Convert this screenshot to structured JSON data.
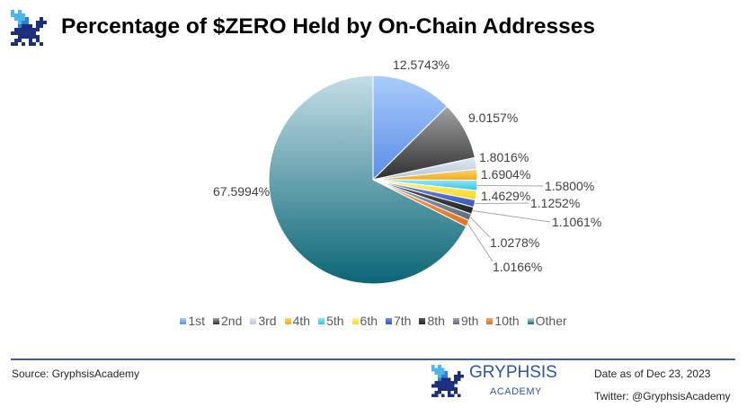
{
  "chart_data": {
    "type": "pie",
    "title": "Percentage of $ZERO Held by On-Chain Addresses",
    "categories": [
      "1st",
      "2nd",
      "3rd",
      "4th",
      "5th",
      "6th",
      "7th",
      "8th",
      "9th",
      "10th",
      "Other"
    ],
    "values": [
      12.5743,
      9.0157,
      1.8016,
      1.6904,
      1.58,
      1.4629,
      1.1252,
      1.1061,
      1.0278,
      1.0166,
      67.5994
    ],
    "data_labels": [
      "12.5743%",
      "9.0157%",
      "1.8016%",
      "1.6904%",
      "1.5800%",
      "1.4629%",
      "1.1252%",
      "1.1061%",
      "1.0278%",
      "1.0166%",
      "67.5994%"
    ],
    "colors": [
      [
        "#a9ccfb",
        "#5a8de6"
      ],
      [
        "#a3a3a3",
        "#2e2e2e"
      ],
      [
        "#e1e9f3",
        "#b3c5da"
      ],
      [
        "#ffd46e",
        "#f0a81e"
      ],
      [
        "#93e6f8",
        "#2fc3e7"
      ],
      [
        "#fff38a",
        "#ffd51a"
      ],
      [
        "#7593e2",
        "#3354bf"
      ],
      [
        "#5c5c5c",
        "#242424"
      ],
      [
        "#a0aab6",
        "#5d6b7b"
      ],
      [
        "#f8a563",
        "#e36d1c"
      ],
      [
        "#c4dee7",
        "#0b6676"
      ]
    ],
    "legend": "bottom"
  },
  "footer": {
    "source": "Source: GryphsisAcademy",
    "date": "Date as of Dec 23, 2023",
    "twitter": "Twitter: @GryphsisAcademy"
  },
  "brand": {
    "name": "GRYPHSIS",
    "sub": "ACADEMY",
    "logo_icon": "gryphsis-logo-icon",
    "color": "#2c55ab",
    "divider_color": "#3d5caa",
    "logo_colors": {
      "light": "#4cb6ea",
      "mid": "#2d7fd3",
      "dark": "#1c2f7d"
    }
  }
}
